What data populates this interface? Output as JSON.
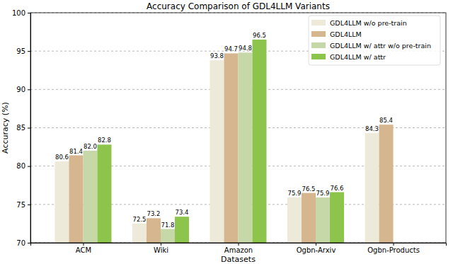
{
  "chart_data": {
    "type": "bar",
    "title": "Accuracy Comparison of GDL4LLM Variants",
    "x_label": "Datasets",
    "y_label": "Accuracy (%)",
    "categories": [
      "ACM",
      "Wiki",
      "Amazon",
      "Ogbn-Arxiv",
      "Ogbn-Products"
    ],
    "series": [
      {
        "name": "GDL4LLM w/o pre-train",
        "color": "#eeead9",
        "values": [
          80.6,
          72.5,
          93.8,
          75.9,
          84.3
        ]
      },
      {
        "name": "GDL4LLM",
        "color": "#d5b68e",
        "values": [
          81.4,
          73.2,
          94.7,
          76.5,
          85.4
        ]
      },
      {
        "name": "GDL4LLM w/ attr w/o pre-train",
        "color": "#c6d7a8",
        "values": [
          82.0,
          71.8,
          94.8,
          75.9,
          null
        ],
        "value_labels": [
          "82.0",
          "71.8",
          "94.8",
          "75.9",
          null
        ]
      },
      {
        "name": "GDL4LLM w/ attr",
        "color": "#8dc54c",
        "values": [
          82.8,
          73.4,
          96.5,
          76.6,
          null
        ]
      }
    ],
    "ylim": [
      70,
      100
    ],
    "yticks": [
      70,
      75,
      80,
      85,
      90,
      95,
      100
    ],
    "grid": true,
    "legend": "upper right",
    "data_labels": true
  }
}
